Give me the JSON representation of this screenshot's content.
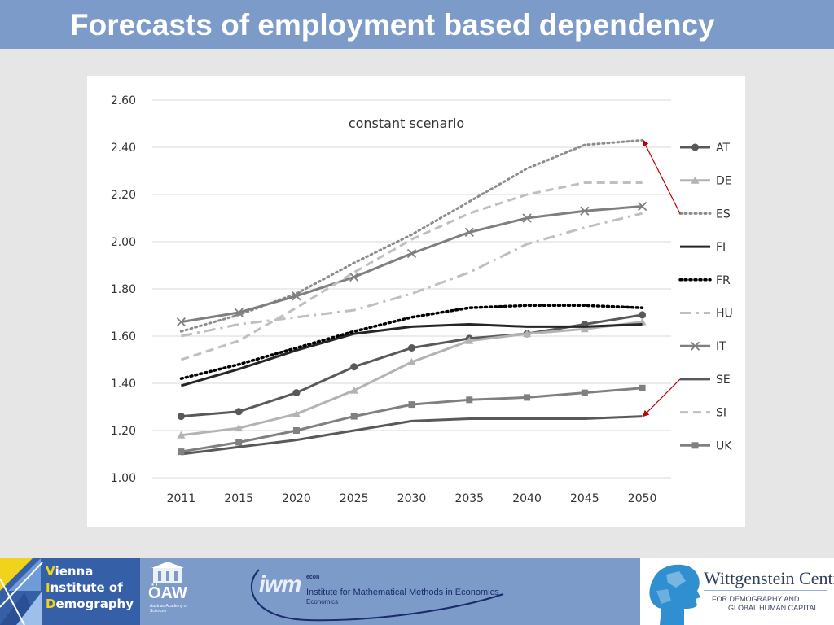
{
  "slide": {
    "title": "Forecasts of employment based dependency"
  },
  "chart_data": {
    "type": "line",
    "title": "constant scenario",
    "xlabel": "",
    "ylabel": "",
    "categories": [
      "2011",
      "2015",
      "2020",
      "2025",
      "2030",
      "2035",
      "2040",
      "2045",
      "2050"
    ],
    "ylim": [
      1.0,
      2.6
    ],
    "yticks": [
      "1.00",
      "1.20",
      "1.40",
      "1.60",
      "1.80",
      "2.00",
      "2.20",
      "2.40",
      "2.60"
    ],
    "grid": true,
    "legend_position": "right",
    "series": [
      {
        "name": "AT",
        "color": "#595959",
        "dash": "solid",
        "marker": "circle",
        "values": [
          1.26,
          1.28,
          1.36,
          1.47,
          1.55,
          1.59,
          1.61,
          1.65,
          1.69
        ]
      },
      {
        "name": "DE",
        "color": "#b3b3b3",
        "dash": "solid",
        "marker": "triangle",
        "values": [
          1.18,
          1.21,
          1.27,
          1.37,
          1.49,
          1.58,
          1.61,
          1.63,
          1.66
        ]
      },
      {
        "name": "ES",
        "color": "#8c8c8c",
        "dash": "dotted",
        "marker": "none",
        "values": [
          1.62,
          1.69,
          1.78,
          1.91,
          2.03,
          2.17,
          2.31,
          2.41,
          2.43
        ]
      },
      {
        "name": "FI",
        "color": "#262626",
        "dash": "solid",
        "marker": "none",
        "values": [
          1.39,
          1.46,
          1.54,
          1.61,
          1.64,
          1.65,
          1.64,
          1.64,
          1.65
        ]
      },
      {
        "name": "FR",
        "color": "#000000",
        "dash": "dotted",
        "marker": "none",
        "values": [
          1.42,
          1.48,
          1.55,
          1.62,
          1.68,
          1.72,
          1.73,
          1.73,
          1.72
        ]
      },
      {
        "name": "HU",
        "color": "#bfbfbf",
        "dash": "dashdot",
        "marker": "none",
        "values": [
          1.6,
          1.65,
          1.68,
          1.71,
          1.78,
          1.87,
          1.99,
          2.06,
          2.12
        ]
      },
      {
        "name": "IT",
        "color": "#7f7f7f",
        "dash": "solid",
        "marker": "x",
        "values": [
          1.66,
          1.7,
          1.77,
          1.85,
          1.95,
          2.04,
          2.1,
          2.13,
          2.15
        ]
      },
      {
        "name": "SE",
        "color": "#595959",
        "dash": "solid",
        "marker": "none",
        "values": [
          1.1,
          1.13,
          1.16,
          1.2,
          1.24,
          1.25,
          1.25,
          1.25,
          1.26
        ]
      },
      {
        "name": "SI",
        "color": "#bfbfbf",
        "dash": "dashed",
        "marker": "none",
        "values": [
          1.5,
          1.58,
          1.72,
          1.87,
          2.01,
          2.12,
          2.2,
          2.25,
          2.25
        ]
      },
      {
        "name": "UK",
        "color": "#808080",
        "dash": "solid",
        "marker": "square",
        "values": [
          1.11,
          1.15,
          1.2,
          1.26,
          1.31,
          1.33,
          1.34,
          1.36,
          1.38
        ]
      }
    ],
    "annotations": [
      {
        "type": "arrow",
        "color": "#c00000",
        "from_legend": "ES",
        "to_series": "ES",
        "to_category": "2050"
      },
      {
        "type": "arrow",
        "color": "#c00000",
        "from_legend": "SE",
        "to_series": "SE",
        "to_category": "2050"
      }
    ]
  },
  "footer": {
    "vid_logo": {
      "line1_cap": "V",
      "line1_rest": "ienna",
      "line2_cap": "I",
      "line2_rest": "nstitute of",
      "line3_cap": "D",
      "line3_rest": "emography"
    },
    "oaw_logo": {
      "abbr": "ÖAW",
      "full": "Austrian Academy of Sciences"
    },
    "iwm_logo": {
      "letters": "iwm",
      "econ": "econ",
      "line1": "Institute for Mathematical Methods in Economics",
      "line2": "Economics"
    },
    "wc_logo": {
      "title": "Wittgenstein Centre",
      "sub1": "FOR DEMOGRAPHY AND",
      "sub2": "GLOBAL HUMAN CAPITAL"
    }
  },
  "colors": {
    "title_bar": "#7d9bc9",
    "background": "#e6e6e6",
    "grid": "#d9d9d9",
    "arrow": "#c00000"
  }
}
